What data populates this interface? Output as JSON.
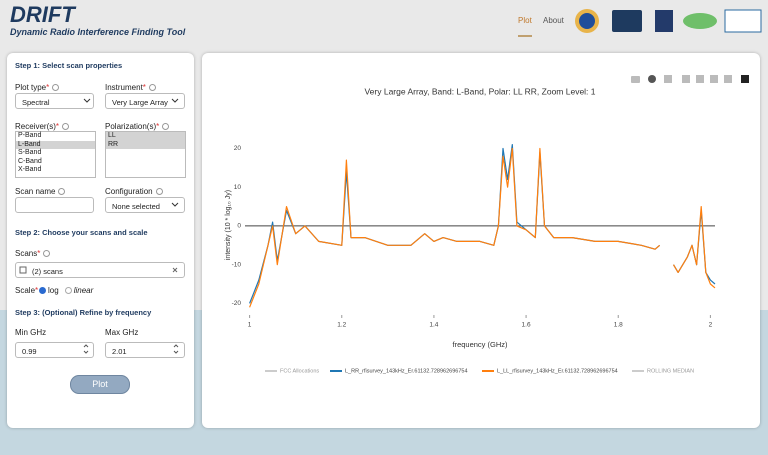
{
  "header": {
    "title": "DRIFT",
    "subtitle": "Dynamic Radio Interference Finding Tool",
    "nav": [
      "Plot",
      "About"
    ]
  },
  "form": {
    "step1": "Step 1: Select scan properties",
    "required_mark": "*",
    "plot_type": {
      "label": "Plot type",
      "value": "Spectral"
    },
    "instrument": {
      "label": "Instrument",
      "value": "Very Large Array"
    },
    "receivers": {
      "label": "Receiver(s)",
      "options": [
        "P-Band",
        "L-Band",
        "S-Band",
        "C-Band",
        "X-Band"
      ],
      "selected": [
        1
      ]
    },
    "polarizations": {
      "label": "Polarization(s)",
      "options": [
        "LL",
        "RR"
      ],
      "selected": [
        0,
        1
      ]
    },
    "scan_name": {
      "label": "Scan name"
    },
    "configuration": {
      "label": "Configuration",
      "value": "None selected"
    },
    "step2": "Step 2: Choose your scans and scale",
    "scans": {
      "label": "Scans",
      "value": "(2) scans"
    },
    "scale": {
      "label": "Scale",
      "options": [
        "log",
        "linear"
      ],
      "selected": 0
    },
    "step3": "Step 3: (Optional) Refine by frequency",
    "min": {
      "label": "Min GHz",
      "value": 0.99
    },
    "max": {
      "label": "Max GHz",
      "value": 2.01
    },
    "button": "Plot"
  },
  "chart_data": {
    "type": "line",
    "title": "Very Large Array, Band: L-Band, Polar: LL RR, Zoom Level: 1",
    "x_label": "frequency (GHz)",
    "y_label": "intensity (10 * log₁₀ Jy)",
    "xlim": [
      0.99,
      2.01
    ],
    "ylim": [
      -23,
      24
    ],
    "xticks": [
      1,
      1.2,
      1.4,
      1.6,
      1.8,
      2
    ],
    "yticks": [
      -20,
      -10,
      0,
      10,
      20
    ],
    "grid": false,
    "zeroline": true,
    "x": [
      1.0,
      1.01,
      1.02,
      1.04,
      1.05,
      1.06,
      1.08,
      1.1,
      1.12,
      1.15,
      1.2,
      1.21,
      1.22,
      1.25,
      1.3,
      1.35,
      1.38,
      1.4,
      1.42,
      1.45,
      1.5,
      1.53,
      1.54,
      1.55,
      1.56,
      1.57,
      1.58,
      1.6,
      1.62,
      1.63,
      1.64,
      1.66,
      1.7,
      1.75,
      1.8,
      1.85,
      1.88,
      1.89,
      1.9,
      1.92,
      1.93,
      1.95,
      1.96,
      1.97,
      1.98,
      1.99,
      2.0,
      2.01
    ],
    "series": [
      {
        "name": "FCC Allocations",
        "color": "#cccccc",
        "values": [
          null,
          null,
          null,
          null,
          null,
          null,
          null,
          null,
          null,
          null,
          null,
          null,
          null,
          null,
          null,
          null,
          null,
          null,
          null,
          null,
          null,
          null,
          null,
          null,
          null,
          null,
          null,
          null,
          null,
          null,
          null,
          null,
          null,
          null,
          null,
          null,
          null,
          null,
          null,
          null,
          null,
          null,
          null,
          null,
          null,
          null,
          null,
          null
        ]
      },
      {
        "name": "L_RR_rfisurvey_143kHz_Er.61132.728962696754",
        "color": "#1f77b4",
        "values": [
          -20,
          -17,
          -14,
          -5,
          1,
          -9,
          4,
          -2,
          0,
          -4,
          -5,
          14,
          -3,
          -3,
          -5,
          -5,
          -2,
          -4,
          -3,
          -4,
          -4,
          -5,
          0,
          20,
          12,
          21,
          1,
          -1,
          -3,
          19,
          0,
          -3,
          -3,
          -4,
          -4,
          -5,
          -6,
          -5,
          null,
          -10,
          -12,
          -8,
          -5,
          -10,
          4,
          -12,
          -14,
          -15
        ]
      },
      {
        "name": "L_LL_rfisurvey_143kHz_Er.61132.728962696754",
        "color": "#ff7f0e",
        "values": [
          -21,
          -18,
          -15,
          -5,
          0,
          -10,
          5,
          -2,
          0,
          -4,
          -5,
          17,
          -3,
          -3,
          -5,
          -5,
          -2,
          -4,
          -3,
          -4,
          -4,
          -5,
          0,
          18,
          10,
          20,
          0,
          -1,
          -3,
          20,
          0,
          -3,
          -3,
          -4,
          -4,
          -5,
          -6,
          -5,
          null,
          -10,
          -12,
          -8,
          -5,
          -10,
          5,
          -12,
          -15,
          -16
        ]
      },
      {
        "name": "ROLLING MEDIAN",
        "color": "#cccccc",
        "values": [
          null,
          null,
          null,
          null,
          null,
          null,
          null,
          null,
          null,
          null,
          null,
          null,
          null,
          null,
          null,
          null,
          null,
          null,
          null,
          null,
          null,
          null,
          null,
          null,
          null,
          null,
          null,
          null,
          null,
          null,
          null,
          null,
          null,
          null,
          null,
          null,
          null,
          null,
          null,
          null,
          null,
          null,
          null,
          null,
          null,
          null,
          null,
          null
        ]
      }
    ]
  }
}
